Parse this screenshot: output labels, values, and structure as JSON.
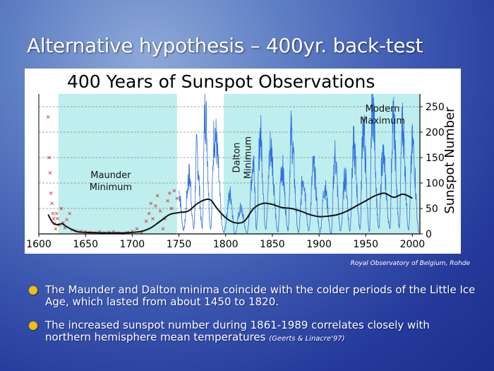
{
  "slide": {
    "title": "Alternative hypothesis – 400yr. back-test",
    "credit": "Royal Observatory of Belgium, Rohde",
    "bullets": [
      {
        "text": "The Maunder and Dalton minima coincide with the colder periods of the Little Ice Age, which lasted from about 1450 to 1820.",
        "citation": ""
      },
      {
        "text": "The increased sunspot number during 1861-1989 correlates closely with northern hemisphere mean temperatures",
        "citation": "(Geerts & Linacre'97)"
      }
    ],
    "colors": {
      "bullet": "#f2c200",
      "shade": "#bfeeee",
      "series_blue": "#2f6fe0",
      "series_red": "#d23b3b",
      "smooth": "#111111"
    }
  },
  "chart_data": {
    "type": "line",
    "title": "400 Years of Sunspot Observations",
    "ylabel": "Sunspot Number",
    "xlabel": "",
    "xlim": [
      1600,
      2008
    ],
    "ylim": [
      0,
      275
    ],
    "x_ticks": [
      1600,
      1650,
      1700,
      1750,
      1800,
      1850,
      1900,
      1950,
      2000
    ],
    "y_ticks": [
      0,
      50,
      100,
      150,
      200,
      250
    ],
    "y_axis_side": "right",
    "grid": "horizontal dashed",
    "shaded_periods": [
      {
        "start": 1621,
        "end": 1748
      },
      {
        "start": 1798,
        "end": 2008
      }
    ],
    "annotations": [
      {
        "text": "Maunder Minimum",
        "lines": [
          "Maunder",
          "Minimum"
        ],
        "x": 1677,
        "y": 110
      },
      {
        "text": "Dalton Minimum",
        "lines": [
          "Dalton",
          "Minimum"
        ],
        "x": 1815,
        "y": 150,
        "rotated": true
      },
      {
        "text": "Modern Maximum",
        "lines": [
          "Modern",
          "Maximum"
        ],
        "x": 1968,
        "y": 240
      }
    ],
    "series": [
      {
        "name": "",
        "style": "scatter-x",
        "color": "#d23b3b",
        "x": [
          1610,
          1611,
          1612,
          1613,
          1614,
          1615,
          1616,
          1617,
          1618,
          1619,
          1620,
          1622,
          1624,
          1626,
          1628,
          1630,
          1633,
          1636,
          1640,
          1645,
          1650,
          1655,
          1660,
          1665,
          1670,
          1675,
          1680,
          1685,
          1690,
          1695,
          1700,
          1705,
          1710,
          1715,
          1718,
          1720,
          1722,
          1725,
          1727,
          1730,
          1733,
          1735,
          1738,
          1740,
          1742,
          1745,
          1748
        ],
        "y": [
          230,
          150,
          120,
          80,
          60,
          40,
          30,
          20,
          10,
          40,
          30,
          18,
          50,
          22,
          12,
          28,
          40,
          8,
          6,
          5,
          4,
          3,
          2,
          4,
          2,
          3,
          4,
          2,
          1,
          3,
          5,
          10,
          2,
          25,
          40,
          60,
          30,
          55,
          75,
          45,
          10,
          30,
          65,
          80,
          50,
          85,
          70
        ]
      },
      {
        "name": "",
        "style": "line",
        "color": "#2f6fe0",
        "peaks": [
          [
            1750,
            80
          ],
          [
            1761,
            110
          ],
          [
            1769,
            155
          ],
          [
            1778,
            240
          ],
          [
            1788,
            195
          ],
          [
            1805,
            75
          ],
          [
            1816,
            48
          ],
          [
            1830,
            140
          ],
          [
            1837,
            190
          ],
          [
            1848,
            165
          ],
          [
            1860,
            130
          ],
          [
            1870,
            190
          ],
          [
            1883,
            110
          ],
          [
            1894,
            125
          ],
          [
            1906,
            90
          ],
          [
            1917,
            150
          ],
          [
            1928,
            110
          ],
          [
            1937,
            165
          ],
          [
            1947,
            205
          ],
          [
            1957,
            255
          ],
          [
            1968,
            150
          ],
          [
            1979,
            220
          ],
          [
            1989,
            210
          ],
          [
            2000,
            170
          ]
        ],
        "minima": [
          [
            1755,
            8
          ],
          [
            1766,
            10
          ],
          [
            1775,
            12
          ],
          [
            1784,
            10
          ],
          [
            1798,
            3
          ],
          [
            1810,
            0
          ],
          [
            1823,
            2
          ],
          [
            1833,
            8
          ],
          [
            1843,
            10
          ],
          [
            1856,
            4
          ],
          [
            1867,
            7
          ],
          [
            1878,
            3
          ],
          [
            1889,
            6
          ],
          [
            1901,
            3
          ],
          [
            1913,
            1
          ],
          [
            1923,
            6
          ],
          [
            1933,
            6
          ],
          [
            1944,
            10
          ],
          [
            1954,
            4
          ],
          [
            1964,
            10
          ],
          [
            1976,
            12
          ],
          [
            1986,
            13
          ],
          [
            1996,
            9
          ],
          [
            2007,
            3
          ]
        ]
      },
      {
        "name": "",
        "style": "smoothed",
        "color": "#111111",
        "x": [
          1610,
          1615,
          1620,
          1625,
          1630,
          1640,
          1650,
          1670,
          1690,
          1700,
          1710,
          1720,
          1730,
          1740,
          1750,
          1760,
          1770,
          1780,
          1785,
          1790,
          1800,
          1810,
          1820,
          1830,
          1840,
          1850,
          1860,
          1870,
          1880,
          1890,
          1900,
          1910,
          1920,
          1930,
          1940,
          1950,
          1960,
          1970,
          1980,
          1990,
          2000
        ],
        "y": [
          38,
          22,
          18,
          20,
          14,
          5,
          3,
          2,
          2,
          3,
          5,
          12,
          25,
          38,
          42,
          45,
          60,
          68,
          65,
          52,
          32,
          22,
          25,
          50,
          60,
          58,
          52,
          50,
          45,
          38,
          34,
          35,
          38,
          45,
          55,
          65,
          75,
          80,
          72,
          78,
          70
        ]
      }
    ]
  }
}
